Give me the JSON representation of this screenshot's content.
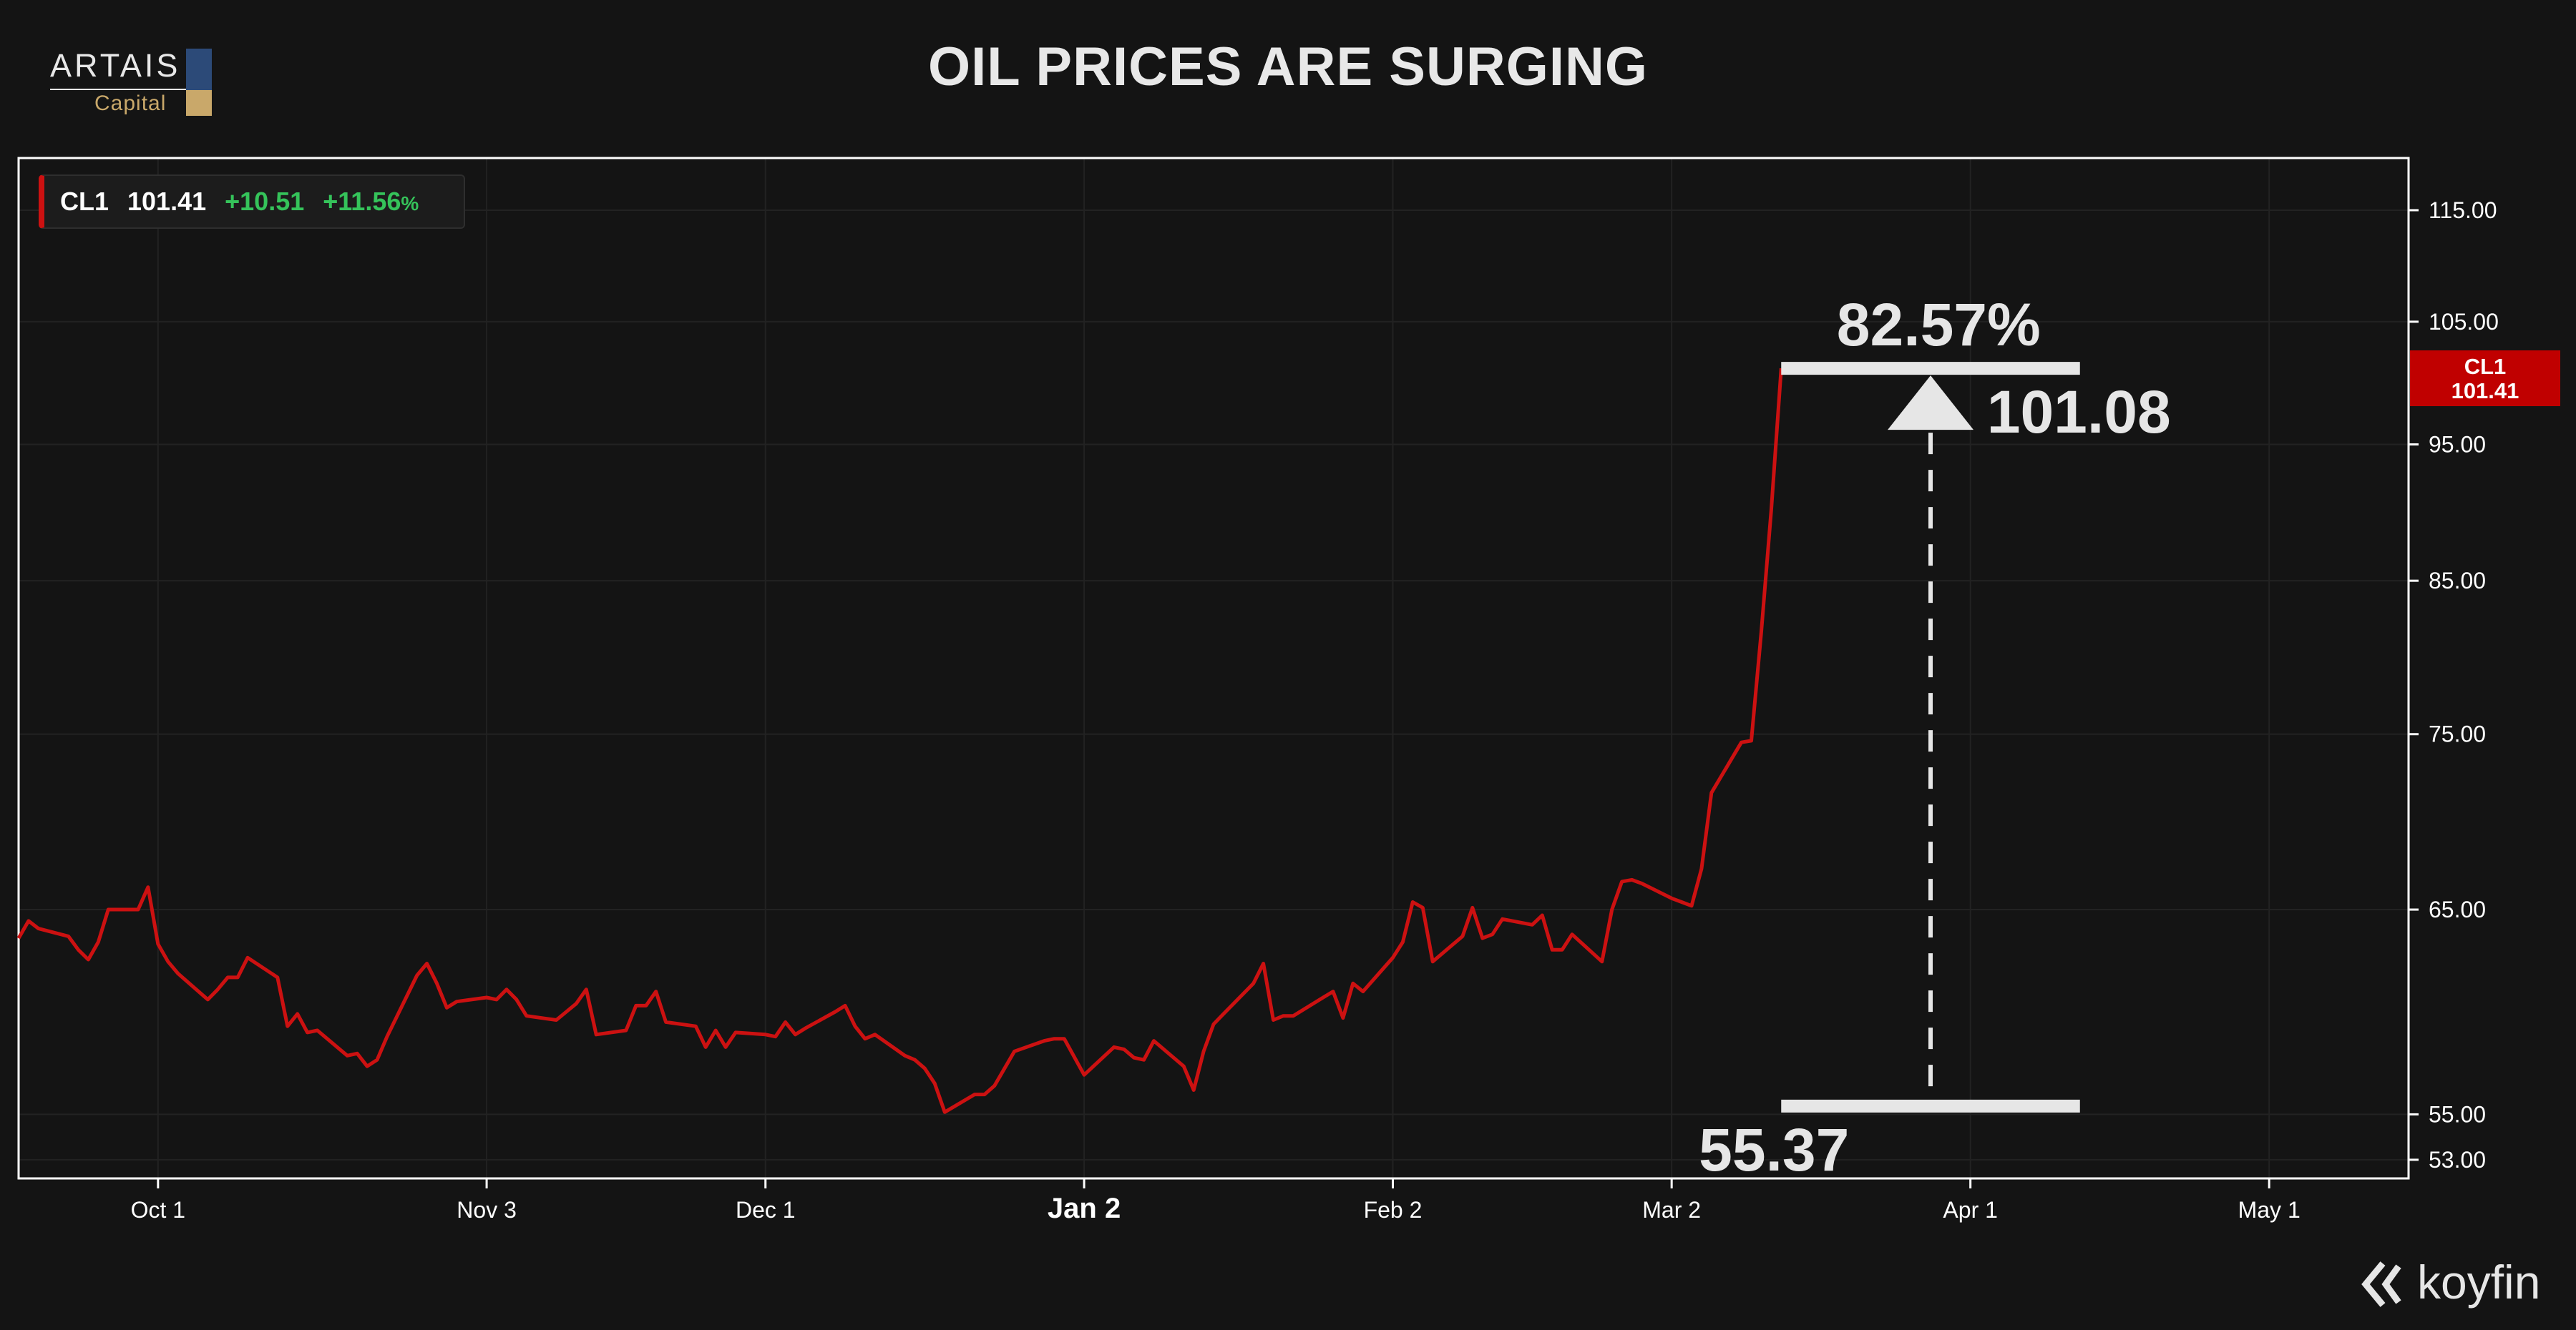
{
  "logo": {
    "name": "ARTAIS",
    "sub": "Capital"
  },
  "title": "OIL PRICES ARE SURGING",
  "legend": {
    "symbol": "CL1",
    "last": "101.41",
    "change": "+10.51",
    "pct_value": "+11.56",
    "pct_unit": "%"
  },
  "price_tag": {
    "symbol": "CL1",
    "value": "101.41"
  },
  "annotation": {
    "percent": "82.57%",
    "high": "101.08",
    "low": "55.37"
  },
  "watermark": "koyfin",
  "colors": {
    "background": "#141414",
    "line": "#cc1111",
    "accent_red": "#c00000",
    "positive": "#35c35a",
    "annotation": "#e6e6e6"
  },
  "chart_data": {
    "type": "line",
    "title": "OIL PRICES ARE SURGING",
    "scale": "log",
    "ylim": [
      52.2,
      120
    ],
    "yticks": [
      53,
      55,
      65,
      75,
      85,
      95,
      105,
      115
    ],
    "ytick_labels": [
      "53.00",
      "55.00",
      "65.00",
      "75.00",
      "85.00",
      "95.00",
      "105.00",
      "115.00"
    ],
    "xlim": [
      "2025-09-17",
      "2026-05-15"
    ],
    "xticks": [
      "2025-10-01",
      "2025-11-03",
      "2025-12-01",
      "2026-01-02",
      "2026-02-02",
      "2026-03-02",
      "2026-04-01",
      "2026-05-01"
    ],
    "xtick_labels": [
      "Oct 1",
      "Nov 3",
      "Dec 1",
      "Jan 2",
      "Feb 2",
      "Mar 2",
      "Apr 1",
      "May 1"
    ],
    "grid": true,
    "legend": "top-left",
    "series": [
      {
        "name": "CL1",
        "color": "#cc1111",
        "points": [
          [
            "2025-09-17",
            63.5
          ],
          [
            "2025-09-18",
            64.4
          ],
          [
            "2025-09-19",
            64.0
          ],
          [
            "2025-09-22",
            63.6
          ],
          [
            "2025-09-23",
            62.9
          ],
          [
            "2025-09-24",
            62.4
          ],
          [
            "2025-09-25",
            63.3
          ],
          [
            "2025-09-26",
            65.0
          ],
          [
            "2025-09-29",
            65.0
          ],
          [
            "2025-09-30",
            66.2
          ],
          [
            "2025-10-01",
            63.2
          ],
          [
            "2025-10-02",
            62.3
          ],
          [
            "2025-10-03",
            61.7
          ],
          [
            "2025-10-06",
            60.4
          ],
          [
            "2025-10-07",
            60.9
          ],
          [
            "2025-10-08",
            61.5
          ],
          [
            "2025-10-09",
            61.5
          ],
          [
            "2025-10-10",
            62.5
          ],
          [
            "2025-10-13",
            61.5
          ],
          [
            "2025-10-14",
            59.1
          ],
          [
            "2025-10-15",
            59.7
          ],
          [
            "2025-10-16",
            58.8
          ],
          [
            "2025-10-17",
            58.9
          ],
          [
            "2025-10-20",
            57.7
          ],
          [
            "2025-10-21",
            57.8
          ],
          [
            "2025-10-22",
            57.2
          ],
          [
            "2025-10-23",
            57.5
          ],
          [
            "2025-10-24",
            58.6
          ],
          [
            "2025-10-27",
            61.6
          ],
          [
            "2025-10-28",
            62.2
          ],
          [
            "2025-10-29",
            61.2
          ],
          [
            "2025-10-30",
            60.0
          ],
          [
            "2025-10-31",
            60.3
          ],
          [
            "2025-11-03",
            60.5
          ],
          [
            "2025-11-04",
            60.4
          ],
          [
            "2025-11-05",
            60.9
          ],
          [
            "2025-11-06",
            60.4
          ],
          [
            "2025-11-07",
            59.6
          ],
          [
            "2025-11-10",
            59.4
          ],
          [
            "2025-11-11",
            59.8
          ],
          [
            "2025-11-12",
            60.2
          ],
          [
            "2025-11-13",
            60.9
          ],
          [
            "2025-11-14",
            58.7
          ],
          [
            "2025-11-17",
            58.9
          ],
          [
            "2025-11-18",
            60.1
          ],
          [
            "2025-11-19",
            60.1
          ],
          [
            "2025-11-20",
            60.8
          ],
          [
            "2025-11-21",
            59.3
          ],
          [
            "2025-11-24",
            59.1
          ],
          [
            "2025-11-25",
            58.1
          ],
          [
            "2025-11-26",
            58.9
          ],
          [
            "2025-11-27",
            58.1
          ],
          [
            "2025-11-28",
            58.8
          ],
          [
            "2025-12-01",
            58.7
          ],
          [
            "2025-12-02",
            58.6
          ],
          [
            "2025-12-03",
            59.3
          ],
          [
            "2025-12-04",
            58.7
          ],
          [
            "2025-12-05",
            59.0
          ],
          [
            "2025-12-08",
            59.8
          ],
          [
            "2025-12-09",
            60.1
          ],
          [
            "2025-12-10",
            59.1
          ],
          [
            "2025-12-11",
            58.5
          ],
          [
            "2025-12-12",
            58.7
          ],
          [
            "2025-12-15",
            57.7
          ],
          [
            "2025-12-16",
            57.5
          ],
          [
            "2025-12-17",
            57.1
          ],
          [
            "2025-12-18",
            56.4
          ],
          [
            "2025-12-19",
            55.1
          ],
          [
            "2025-12-22",
            55.9
          ],
          [
            "2025-12-23",
            55.9
          ],
          [
            "2025-12-24",
            56.3
          ],
          [
            "2025-12-26",
            57.9
          ],
          [
            "2025-12-29",
            58.4
          ],
          [
            "2025-12-30",
            58.5
          ],
          [
            "2025-12-31",
            58.5
          ],
          [
            "2026-01-02",
            56.8
          ],
          [
            "2026-01-05",
            58.1
          ],
          [
            "2026-01-06",
            58.0
          ],
          [
            "2026-01-07",
            57.6
          ],
          [
            "2026-01-08",
            57.5
          ],
          [
            "2026-01-09",
            58.4
          ],
          [
            "2026-01-12",
            57.2
          ],
          [
            "2026-01-13",
            56.1
          ],
          [
            "2026-01-14",
            57.9
          ],
          [
            "2026-01-15",
            59.2
          ],
          [
            "2026-01-16",
            59.7
          ],
          [
            "2026-01-19",
            61.2
          ],
          [
            "2026-01-20",
            62.2
          ],
          [
            "2026-01-21",
            59.4
          ],
          [
            "2026-01-22",
            59.6
          ],
          [
            "2026-01-23",
            59.6
          ],
          [
            "2026-01-26",
            60.5
          ],
          [
            "2026-01-27",
            60.8
          ],
          [
            "2026-01-28",
            59.5
          ],
          [
            "2026-01-29",
            61.2
          ],
          [
            "2026-01-30",
            60.8
          ],
          [
            "2026-02-02",
            62.5
          ],
          [
            "2026-02-03",
            63.3
          ],
          [
            "2026-02-04",
            65.4
          ],
          [
            "2026-02-05",
            65.1
          ],
          [
            "2026-02-06",
            62.3
          ],
          [
            "2026-02-09",
            63.6
          ],
          [
            "2026-02-10",
            65.1
          ],
          [
            "2026-02-11",
            63.5
          ],
          [
            "2026-02-12",
            63.7
          ],
          [
            "2026-02-13",
            64.5
          ],
          [
            "2026-02-16",
            64.2
          ],
          [
            "2026-02-17",
            64.7
          ],
          [
            "2026-02-18",
            62.9
          ],
          [
            "2026-02-19",
            62.9
          ],
          [
            "2026-02-20",
            63.7
          ],
          [
            "2026-02-23",
            62.3
          ],
          [
            "2026-02-24",
            65.0
          ],
          [
            "2026-02-25",
            66.5
          ],
          [
            "2026-02-26",
            66.6
          ],
          [
            "2026-02-27",
            66.4
          ],
          [
            "2026-03-02",
            65.6
          ],
          [
            "2026-03-03",
            65.4
          ],
          [
            "2026-03-04",
            65.2
          ],
          [
            "2026-03-05",
            67.2
          ],
          [
            "2026-03-06",
            71.5
          ],
          [
            "2026-03-09",
            74.5
          ],
          [
            "2026-03-10",
            74.6
          ],
          [
            "2026-03-11",
            81.5
          ],
          [
            "2026-03-12",
            90.0
          ],
          [
            "2026-03-13",
            101.08
          ]
        ]
      }
    ],
    "annotations": {
      "low": 55.37,
      "high": 101.08,
      "change_pct": "82.57%",
      "range_start": "2026-03-13",
      "range_end": "2026-04-12"
    }
  }
}
